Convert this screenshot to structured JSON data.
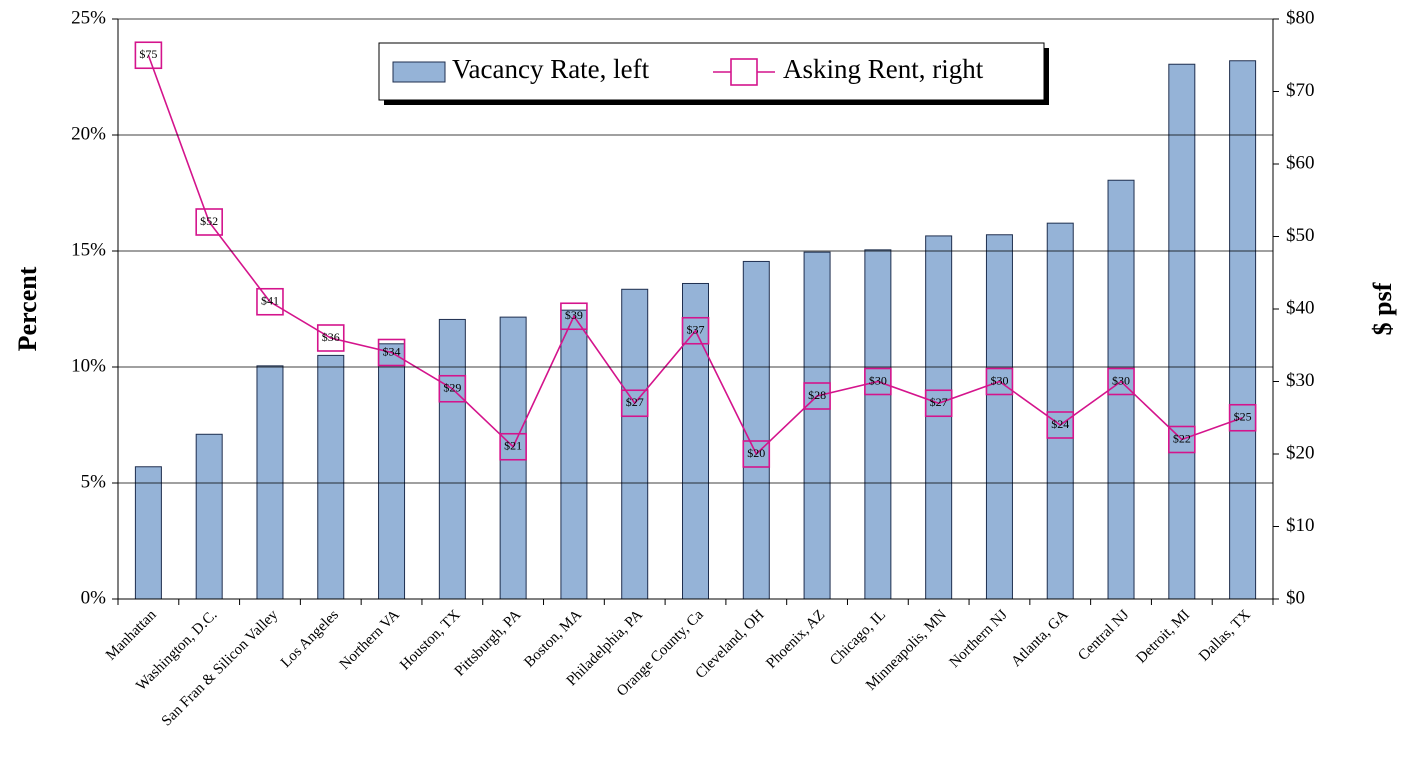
{
  "chart_data": {
    "type": "combo",
    "categories": [
      "Manhattan",
      "Washington, D.C.",
      "San Fran & Silicon Valley",
      "Los Angeles",
      "Northern VA",
      "Houston, TX",
      "Pittsburgh, PA",
      "Boston, MA",
      "Philadelphia, PA",
      "Orange County, Ca",
      "Cleveland, OH",
      "Phoenix, AZ",
      "Chicago, IL",
      "Minneapolis, MN",
      "Northern NJ",
      "Atlanta, GA",
      "Central NJ",
      "Detroit, MI",
      "Dallas, TX"
    ],
    "series": [
      {
        "name": "Vacancy Rate, left",
        "type": "bar",
        "color": "#95b3d7",
        "values": [
          5.7,
          7.1,
          10.05,
          10.5,
          11.0,
          12.05,
          12.15,
          12.45,
          13.35,
          13.6,
          14.55,
          14.95,
          15.05,
          15.65,
          15.7,
          16.2,
          18.05,
          23.05,
          23.2
        ]
      },
      {
        "name": "Asking Rent, right",
        "type": "line",
        "axis": "y2",
        "color": "#d4148c",
        "values": [
          75,
          52,
          41,
          36,
          34,
          29,
          21,
          39,
          27,
          37,
          20,
          28,
          30,
          27,
          30,
          24,
          30,
          22,
          25
        ],
        "value_labels": [
          "$75",
          "$52",
          "$41",
          "$36",
          "$34",
          "$29",
          "$21",
          "$39",
          "$27",
          "$37",
          "$20",
          "$28",
          "$30",
          "$27",
          "$30",
          "$24",
          "$30",
          "$22",
          "$25"
        ]
      }
    ],
    "y_label": "Percent",
    "y2_label": "$ psf",
    "ylim": [
      0,
      25
    ],
    "yticks": [
      {
        "value": 0,
        "label": "0%"
      },
      {
        "value": 5,
        "label": "5%"
      },
      {
        "value": 10,
        "label": "10%"
      },
      {
        "value": 15,
        "label": "15%"
      },
      {
        "value": 20,
        "label": "20%"
      },
      {
        "value": 25,
        "label": "25%"
      }
    ],
    "y2lim": [
      0,
      80
    ],
    "y2ticks": [
      {
        "value": 0,
        "label": "$0"
      },
      {
        "value": 10,
        "label": "$10"
      },
      {
        "value": 20,
        "label": "$20"
      },
      {
        "value": 30,
        "label": "$30"
      },
      {
        "value": 40,
        "label": "$40"
      },
      {
        "value": 50,
        "label": "$50"
      },
      {
        "value": 60,
        "label": "$60"
      },
      {
        "value": 70,
        "label": "$70"
      },
      {
        "value": 80,
        "label": "$80"
      }
    ],
    "grid": true,
    "legend": "top"
  }
}
